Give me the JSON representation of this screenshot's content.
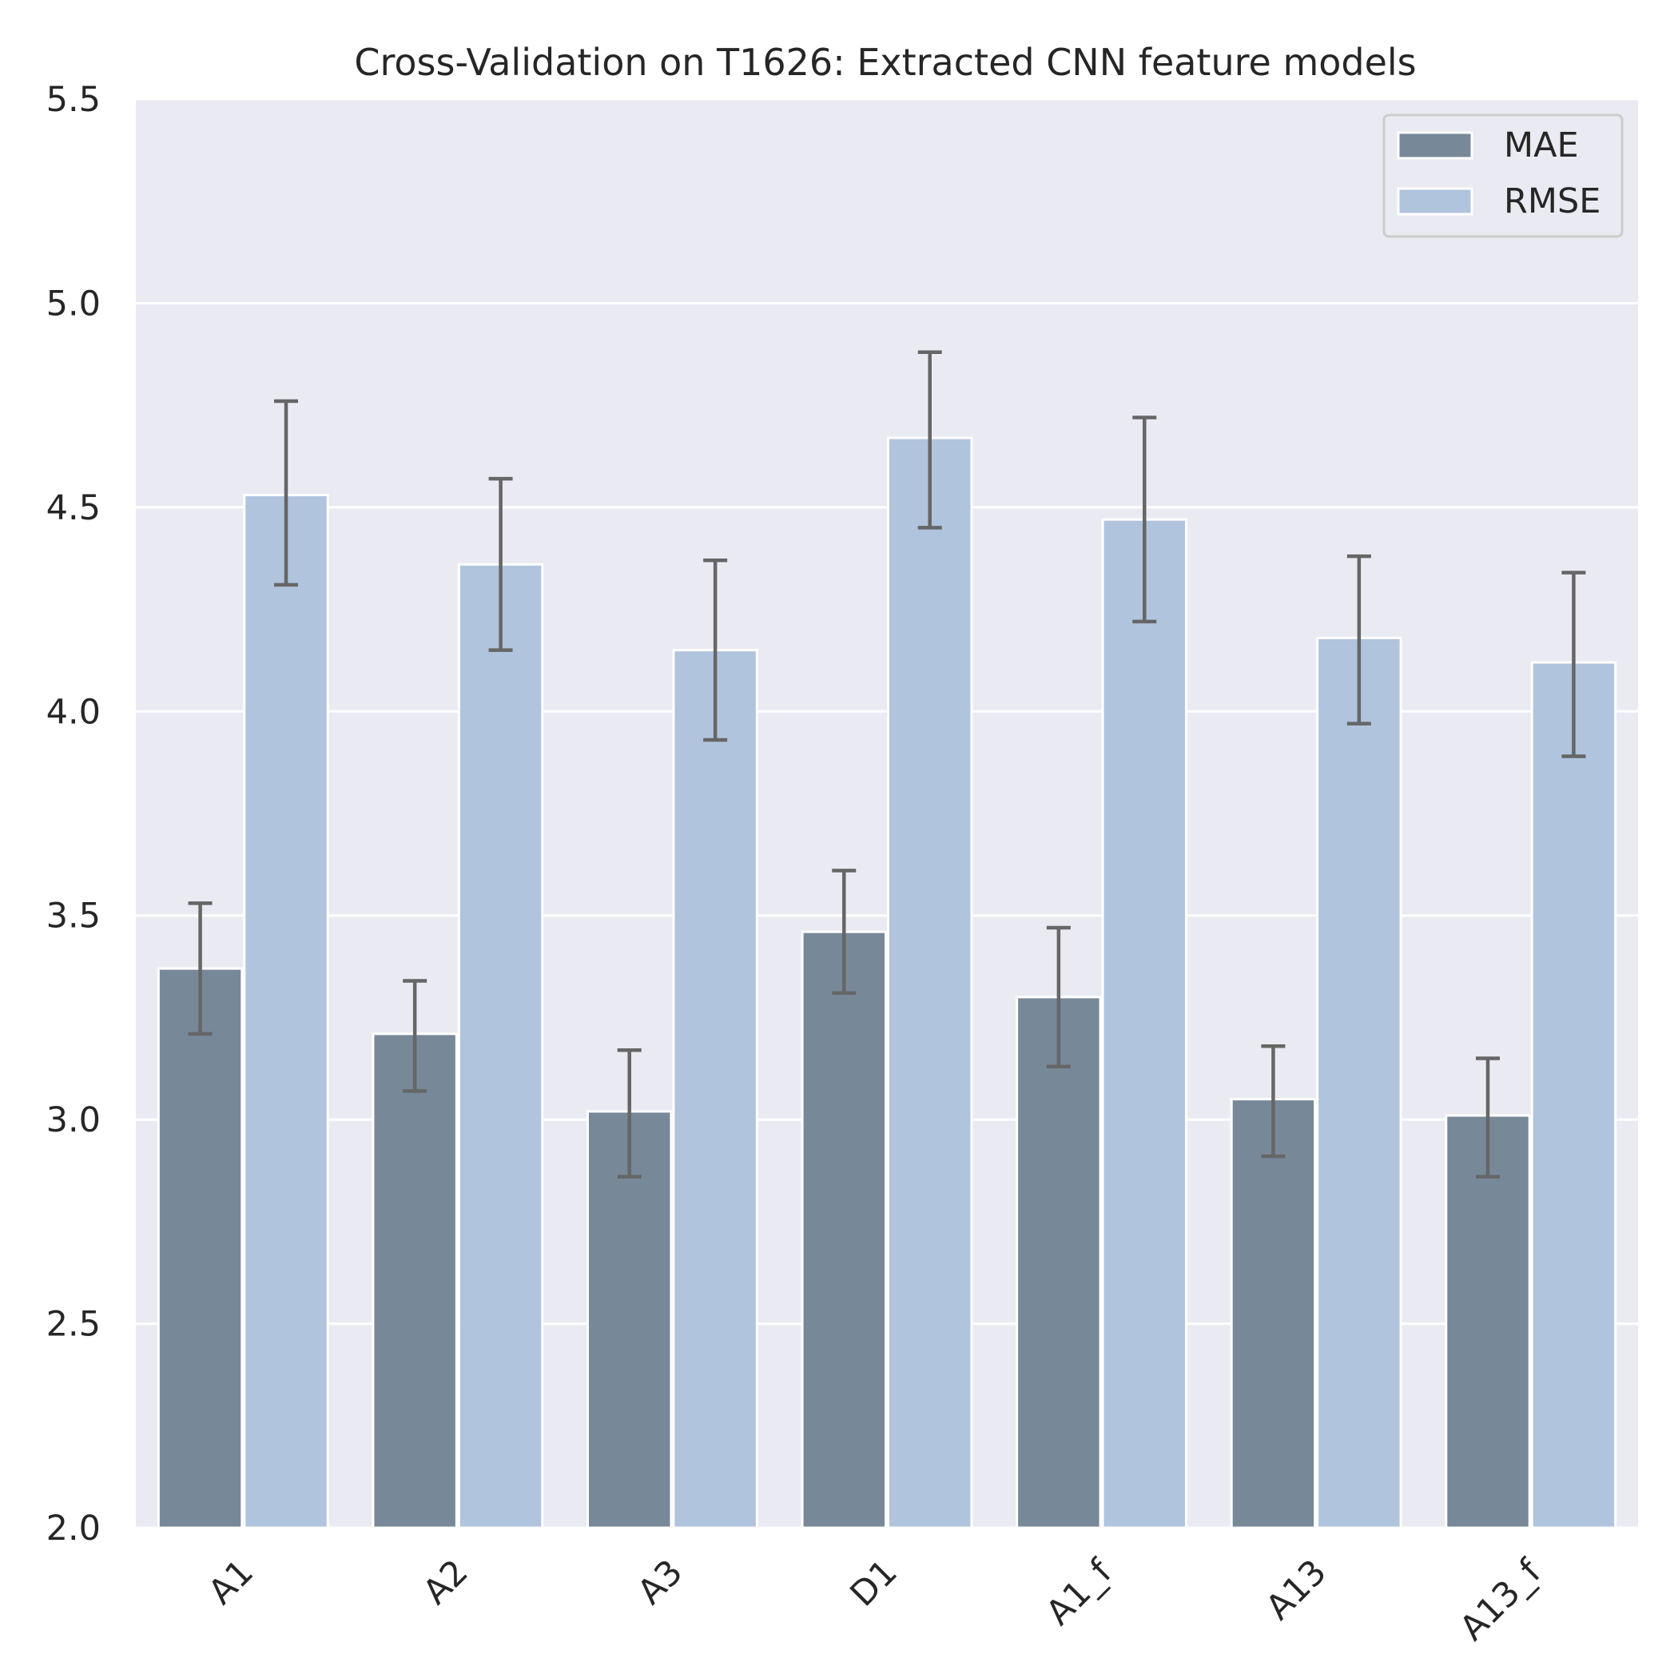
{
  "chart_data": {
    "type": "bar",
    "title": "Cross-Validation on T1626: Extracted CNN feature models",
    "xlabel": "",
    "ylabel": "",
    "ylim": [
      2.0,
      5.5
    ],
    "yticks": [
      "2.0",
      "2.5",
      "3.0",
      "3.5",
      "4.0",
      "4.5",
      "5.0",
      "5.5"
    ],
    "categories": [
      "A1",
      "A2",
      "A3",
      "D1",
      "A1_f",
      "A13",
      "A13_f"
    ],
    "series": [
      {
        "name": "MAE",
        "color": "#778899",
        "values": [
          3.37,
          3.21,
          3.02,
          3.46,
          3.3,
          3.05,
          3.01
        ],
        "err_low": [
          3.21,
          3.07,
          2.86,
          3.31,
          3.13,
          2.91,
          2.86
        ],
        "err_high": [
          3.53,
          3.34,
          3.17,
          3.61,
          3.47,
          3.18,
          3.15
        ]
      },
      {
        "name": "RMSE",
        "color": "#b0c4de",
        "values": [
          4.53,
          4.36,
          4.15,
          4.67,
          4.47,
          4.18,
          4.12
        ],
        "err_low": [
          4.31,
          4.15,
          3.93,
          4.45,
          4.22,
          3.97,
          3.89
        ],
        "err_high": [
          4.76,
          4.57,
          4.37,
          4.88,
          4.72,
          4.38,
          4.34
        ]
      }
    ],
    "error_bar_color": "#666666",
    "plot_background": "#eaeaf2",
    "grid": true,
    "grid_color": "#ffffff",
    "legend": {
      "placement": "top-right",
      "entries": [
        "MAE",
        "RMSE"
      ]
    },
    "xtick_rotation_deg": 45
  }
}
